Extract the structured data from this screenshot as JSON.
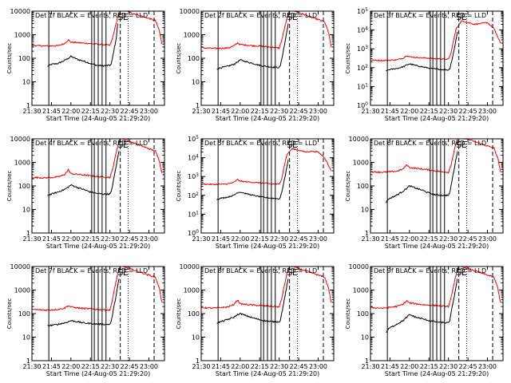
{
  "chart_data": {
    "type": "line",
    "layout": "3x3 grid",
    "y_scale": "log",
    "y_label": "Counts/sec",
    "x_label": "Start Time (24-Aug-05 21:29:20)",
    "x_ticks": [
      "21:30",
      "21:45",
      "22:00",
      "22:15",
      "22:30",
      "22:45",
      "23:00"
    ],
    "x_range": [
      "21:30",
      "23:12"
    ],
    "series_colors": {
      "Events": "#000000",
      "LLD": "#ff0000"
    },
    "panels": [
      {
        "title": "Det 1f BLACK = Events, RED = LLD",
        "ylim": [
          1,
          10000
        ],
        "y_ticks": [
          "1",
          "10",
          "100",
          "1000",
          "10000"
        ],
        "y_exp_ticks": false,
        "markers": [
          "S",
          "E"
        ],
        "series": [
          {
            "name": "Events",
            "x": [
              "21:42",
              "21:45",
              "21:50",
              "21:55",
              "21:58",
              "22:00",
              "22:05",
              "22:10",
              "22:15",
              "22:20",
              "22:25",
              "22:30",
              "22:31",
              "22:33",
              "22:35",
              "22:36"
            ],
            "y": [
              45,
              55,
              60,
              80,
              100,
              120,
              90,
              75,
              60,
              50,
              48,
              50,
              55,
              200,
              800,
              3000
            ]
          },
          {
            "name": "LLD",
            "x": [
              "21:30",
              "21:40",
              "21:50",
              "21:55",
              "21:58",
              "22:00",
              "22:05",
              "22:10",
              "22:15",
              "22:20",
              "22:25",
              "22:30",
              "22:32",
              "22:34",
              "22:36",
              "22:38",
              "23:05",
              "23:08",
              "23:10"
            ],
            "y": [
              350,
              330,
              340,
              420,
              600,
              480,
              460,
              440,
              420,
              400,
              380,
              350,
              700,
              2000,
              6000,
              12000,
              4000,
              1500,
              400
            ]
          }
        ]
      },
      {
        "title": "Det 2f BLACK = Events, RED = LLD",
        "ylim": [
          1,
          10000
        ],
        "y_ticks": [
          "1",
          "10",
          "100",
          "1000",
          "10000"
        ],
        "y_exp_ticks": false,
        "markers": [
          "S",
          "E"
        ],
        "series": [
          {
            "name": "Events",
            "x": [
              "21:42",
              "21:45",
              "21:50",
              "21:55",
              "21:58",
              "22:00",
              "22:05",
              "22:10",
              "22:15",
              "22:20",
              "22:25",
              "22:30",
              "22:31",
              "22:33",
              "22:35",
              "22:37"
            ],
            "y": [
              35,
              40,
              45,
              55,
              70,
              85,
              70,
              60,
              50,
              45,
              42,
              40,
              50,
              180,
              700,
              3000
            ]
          },
          {
            "name": "LLD",
            "x": [
              "21:30",
              "21:40",
              "21:50",
              "21:55",
              "21:58",
              "22:00",
              "22:05",
              "22:10",
              "22:15",
              "22:20",
              "22:25",
              "22:30",
              "22:32",
              "22:34",
              "22:36",
              "22:38",
              "23:05",
              "23:08",
              "23:10"
            ],
            "y": [
              280,
              260,
              270,
              330,
              450,
              380,
              360,
              340,
              330,
              310,
              290,
              270,
              600,
              1800,
              5000,
              12000,
              3500,
              1200,
              300
            ]
          }
        ]
      },
      {
        "title": "Det 3f BLACK = Events, RED = LLD",
        "ylim": [
          1,
          100000
        ],
        "y_ticks": [
          "0",
          "1",
          "2",
          "3",
          "4",
          "5"
        ],
        "y_exp_ticks": true,
        "markers": [
          "S",
          "E"
        ],
        "series": [
          {
            "name": "Events",
            "x": [
              "21:42",
              "21:45",
              "21:50",
              "21:55",
              "21:58",
              "22:00",
              "22:05",
              "22:10",
              "22:15",
              "22:20",
              "22:25",
              "22:30",
              "22:31",
              "22:33",
              "22:35",
              "22:37"
            ],
            "y": [
              70,
              80,
              90,
              110,
              140,
              160,
              130,
              110,
              95,
              85,
              80,
              75,
              90,
              300,
              1500,
              8000
            ]
          },
          {
            "name": "LLD",
            "x": [
              "21:30",
              "21:40",
              "21:50",
              "21:55",
              "21:58",
              "22:00",
              "22:05",
              "22:10",
              "22:15",
              "22:20",
              "22:25",
              "22:30",
              "22:32",
              "22:34",
              "22:36",
              "22:40",
              "22:45",
              "22:50",
              "22:55",
              "23:00",
              "23:05",
              "23:10"
            ],
            "y": [
              250,
              240,
              260,
              320,
              450,
              380,
              350,
              330,
              320,
              300,
              290,
              280,
              600,
              3000,
              12000,
              30000,
              25000,
              20000,
              22000,
              25000,
              12000,
              2000
            ]
          }
        ]
      },
      {
        "title": "Det 4f BLACK = Events, RED = LLD",
        "ylim": [
          1,
          10000
        ],
        "y_ticks": [
          "1",
          "10",
          "100",
          "1000",
          "10000"
        ],
        "y_exp_ticks": false,
        "markers": [
          "S",
          "E"
        ],
        "series": [
          {
            "name": "Events",
            "x": [
              "21:42",
              "21:45",
              "21:50",
              "21:55",
              "21:58",
              "22:00",
              "22:05",
              "22:10",
              "22:15",
              "22:20",
              "22:25",
              "22:30",
              "22:31",
              "22:33",
              "22:35",
              "22:37"
            ],
            "y": [
              40,
              45,
              55,
              70,
              90,
              110,
              85,
              70,
              55,
              48,
              45,
              45,
              55,
              200,
              800,
              3000
            ]
          },
          {
            "name": "LLD",
            "x": [
              "21:30",
              "21:40",
              "21:50",
              "21:55",
              "21:58",
              "22:00",
              "22:05",
              "22:10",
              "22:15",
              "22:20",
              "22:25",
              "22:30",
              "22:32",
              "22:34",
              "22:36",
              "22:38",
              "23:05",
              "23:08",
              "23:10"
            ],
            "y": [
              230,
              220,
              240,
              300,
              480,
              330,
              310,
              290,
              270,
              250,
              240,
              230,
              500,
              1600,
              5000,
              11000,
              3000,
              1200,
              350
            ]
          }
        ]
      },
      {
        "title": "Det 5f BLACK = Events, RED = LLD",
        "ylim": [
          1,
          100000
        ],
        "y_ticks": [
          "0",
          "1",
          "2",
          "3",
          "4",
          "5"
        ],
        "y_exp_ticks": true,
        "markers": [
          "S",
          "E"
        ],
        "series": [
          {
            "name": "Events",
            "x": [
              "21:42",
              "21:45",
              "21:50",
              "21:55",
              "21:58",
              "22:00",
              "22:05",
              "22:10",
              "22:15",
              "22:20",
              "22:25",
              "22:30",
              "22:31",
              "22:33",
              "22:35",
              "22:37"
            ],
            "y": [
              60,
              70,
              80,
              100,
              140,
              150,
              120,
              100,
              85,
              75,
              70,
              65,
              80,
              300,
              1500,
              8000
            ]
          },
          {
            "name": "LLD",
            "x": [
              "21:30",
              "21:40",
              "21:50",
              "21:55",
              "21:58",
              "22:00",
              "22:05",
              "22:10",
              "22:15",
              "22:20",
              "22:25",
              "22:30",
              "22:32",
              "22:34",
              "22:36",
              "22:40",
              "22:45",
              "22:50",
              "22:55",
              "23:00",
              "23:05",
              "23:10"
            ],
            "y": [
              400,
              380,
              400,
              480,
              700,
              560,
              520,
              490,
              460,
              430,
              400,
              390,
              800,
              4000,
              15000,
              30000,
              25000,
              20000,
              22000,
              20000,
              10000,
              2000
            ]
          }
        ]
      },
      {
        "title": "Det 6f BLACK = Events, RED = LLD",
        "ylim": [
          1,
          10000
        ],
        "y_ticks": [
          "1",
          "10",
          "100",
          "1000",
          "10000"
        ],
        "y_exp_ticks": false,
        "markers": [
          "S",
          "E"
        ],
        "series": [
          {
            "name": "Events",
            "x": [
              "21:42",
              "21:43",
              "21:45",
              "21:50",
              "21:55",
              "21:58",
              "22:00",
              "22:05",
              "22:10",
              "22:15",
              "22:20",
              "22:25",
              "22:30",
              "22:31",
              "22:33",
              "22:35",
              "22:37"
            ],
            "y": [
              20,
              25,
              30,
              40,
              60,
              80,
              100,
              80,
              65,
              50,
              42,
              40,
              40,
              50,
              200,
              800,
              3000
            ]
          },
          {
            "name": "LLD",
            "x": [
              "21:30",
              "21:40",
              "21:50",
              "21:55",
              "21:58",
              "22:00",
              "22:05",
              "22:10",
              "22:15",
              "22:20",
              "22:25",
              "22:30",
              "22:32",
              "22:34",
              "22:36",
              "22:38",
              "23:05",
              "23:08",
              "23:10"
            ],
            "y": [
              400,
              380,
              420,
              520,
              800,
              600,
              560,
              520,
              480,
              440,
              400,
              380,
              800,
              2500,
              7000,
              13000,
              4000,
              1500,
              400
            ]
          }
        ]
      },
      {
        "title": "Det 7f BLACK = Events, RED = LLD",
        "ylim": [
          1,
          10000
        ],
        "y_ticks": [
          "1",
          "10",
          "100",
          "1000",
          "10000"
        ],
        "y_exp_ticks": false,
        "markers": [
          "S",
          "E"
        ],
        "series": [
          {
            "name": "Events",
            "x": [
              "21:42",
              "21:45",
              "21:50",
              "21:55",
              "21:58",
              "22:00",
              "22:05",
              "22:10",
              "22:15",
              "22:20",
              "22:25",
              "22:30",
              "22:31",
              "22:33",
              "22:35",
              "22:37"
            ],
            "y": [
              30,
              32,
              35,
              40,
              45,
              50,
              45,
              40,
              38,
              36,
              35,
              35,
              45,
              180,
              700,
              3000
            ]
          },
          {
            "name": "LLD",
            "x": [
              "21:30",
              "21:40",
              "21:50",
              "21:55",
              "21:58",
              "22:00",
              "22:05",
              "22:10",
              "22:15",
              "22:20",
              "22:25",
              "22:30",
              "22:32",
              "22:34",
              "22:36",
              "22:38",
              "23:05",
              "23:08",
              "23:10"
            ],
            "y": [
              150,
              140,
              150,
              170,
              220,
              190,
              175,
              165,
              160,
              150,
              145,
              140,
              400,
              1500,
              5000,
              11000,
              3500,
              1200,
              300
            ]
          }
        ]
      },
      {
        "title": "Det 8f BLACK = Events, RED = LLD",
        "ylim": [
          1,
          10000
        ],
        "y_ticks": [
          "1",
          "10",
          "100",
          "1000",
          "10000"
        ],
        "y_exp_ticks": false,
        "markers": [
          "S",
          "E"
        ],
        "series": [
          {
            "name": "Events",
            "x": [
              "21:42",
              "21:45",
              "21:50",
              "21:55",
              "21:58",
              "22:00",
              "22:05",
              "22:10",
              "22:15",
              "22:20",
              "22:25",
              "22:30",
              "22:31",
              "22:33",
              "22:35",
              "22:37"
            ],
            "y": [
              40,
              45,
              55,
              70,
              90,
              100,
              80,
              65,
              55,
              48,
              45,
              45,
              55,
              200,
              800,
              3000
            ]
          },
          {
            "name": "LLD",
            "x": [
              "21:30",
              "21:40",
              "21:50",
              "21:55",
              "21:58",
              "22:00",
              "22:05",
              "22:10",
              "22:15",
              "22:20",
              "22:25",
              "22:30",
              "22:32",
              "22:34",
              "22:36",
              "22:38",
              "23:05",
              "23:08",
              "23:10"
            ],
            "y": [
              180,
              170,
              190,
              240,
              380,
              260,
              240,
              230,
              220,
              210,
              200,
              190,
              450,
              1600,
              5000,
              11000,
              3500,
              1200,
              300
            ]
          }
        ]
      },
      {
        "title": "Det 9f BLACK = Events, RED = LLD",
        "ylim": [
          1,
          10000
        ],
        "y_ticks": [
          "1",
          "10",
          "100",
          "1000",
          "10000"
        ],
        "y_exp_ticks": false,
        "markers": [
          "S",
          "E"
        ],
        "series": [
          {
            "name": "Events",
            "x": [
              "21:42",
              "21:43",
              "21:45",
              "21:50",
              "21:55",
              "21:58",
              "22:00",
              "22:05",
              "22:10",
              "22:15",
              "22:20",
              "22:25",
              "22:30",
              "22:31",
              "22:33",
              "22:35",
              "22:37"
            ],
            "y": [
              15,
              20,
              25,
              35,
              50,
              70,
              90,
              70,
              60,
              50,
              45,
              42,
              40,
              50,
              200,
              800,
              3000
            ]
          },
          {
            "name": "LLD",
            "x": [
              "21:30",
              "21:40",
              "21:50",
              "21:55",
              "21:58",
              "22:00",
              "22:05",
              "22:10",
              "22:15",
              "22:20",
              "22:25",
              "22:30",
              "22:32",
              "22:34",
              "22:36",
              "22:38",
              "23:05",
              "23:08",
              "23:10"
            ],
            "y": [
              180,
              170,
              200,
              250,
              350,
              280,
              260,
              240,
              230,
              220,
              210,
              200,
              450,
              1600,
              5000,
              11000,
              3500,
              1200,
              300
            ]
          }
        ]
      }
    ]
  }
}
